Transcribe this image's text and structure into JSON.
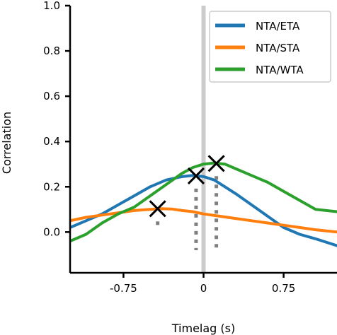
{
  "chart_data": {
    "type": "line",
    "title": "",
    "xlabel": "Timelag (s)",
    "ylabel": "Correlation",
    "xlim": [
      -1.25,
      1.25
    ],
    "ylim": [
      -0.18,
      1.0
    ],
    "xticks": [
      {
        "value": -0.75,
        "label": "-0.75"
      },
      {
        "value": 0,
        "label": "0"
      },
      {
        "value": 0.75,
        "label": "0.75"
      }
    ],
    "yticks": [
      {
        "value": 0.0,
        "label": "0.0"
      },
      {
        "value": 0.2,
        "label": "0.2"
      },
      {
        "value": 0.4,
        "label": "0.4"
      },
      {
        "value": 0.6,
        "label": "0.6"
      },
      {
        "value": 0.8,
        "label": "0.8"
      },
      {
        "value": 1.0,
        "label": "1.0"
      }
    ],
    "grid": false,
    "legend_position": "top-right",
    "zero_line": {
      "x": 0,
      "color": "#cccccc"
    },
    "series": [
      {
        "name": "NTA/ETA",
        "color": "#1f77b4",
        "x": [
          -1.25,
          -1.1,
          -0.95,
          -0.8,
          -0.65,
          -0.5,
          -0.35,
          -0.2,
          -0.1,
          0.0,
          0.1,
          0.2,
          0.3,
          0.45,
          0.6,
          0.75,
          0.9,
          1.05,
          1.25
        ],
        "y": [
          0.02,
          0.05,
          0.08,
          0.12,
          0.16,
          0.2,
          0.23,
          0.245,
          0.25,
          0.245,
          0.23,
          0.2,
          0.17,
          0.12,
          0.07,
          0.02,
          -0.01,
          -0.03,
          -0.06
        ]
      },
      {
        "name": "NTA/STA",
        "color": "#ff7f0e",
        "x": [
          -1.25,
          -1.1,
          -0.95,
          -0.8,
          -0.65,
          -0.5,
          -0.4,
          -0.3,
          -0.2,
          -0.1,
          0.0,
          0.15,
          0.3,
          0.45,
          0.6,
          0.75,
          0.9,
          1.05,
          1.25
        ],
        "y": [
          0.05,
          0.065,
          0.075,
          0.085,
          0.095,
          0.1,
          0.103,
          0.102,
          0.095,
          0.09,
          0.08,
          0.07,
          0.06,
          0.05,
          0.04,
          0.03,
          0.02,
          0.01,
          0.0
        ]
      },
      {
        "name": "NTA/WTA",
        "color": "#2ca02c",
        "x": [
          -1.25,
          -1.1,
          -0.95,
          -0.8,
          -0.65,
          -0.5,
          -0.35,
          -0.2,
          -0.1,
          0.0,
          0.1,
          0.2,
          0.3,
          0.45,
          0.6,
          0.75,
          0.9,
          1.05,
          1.25
        ],
        "y": [
          -0.04,
          -0.01,
          0.04,
          0.08,
          0.11,
          0.16,
          0.21,
          0.26,
          0.285,
          0.3,
          0.305,
          0.3,
          0.28,
          0.25,
          0.22,
          0.18,
          0.14,
          0.1,
          0.09
        ]
      }
    ],
    "peak_markers": [
      {
        "series": "NTA/STA",
        "x": -0.43,
        "y": 0.103,
        "line_bottom": 0.02,
        "color": "#000000"
      },
      {
        "series": "NTA/ETA",
        "x": -0.07,
        "y": 0.248,
        "line_bottom": -0.08,
        "color": "#000000"
      },
      {
        "series": "NTA/WTA",
        "x": 0.12,
        "y": 0.303,
        "line_bottom": -0.09,
        "color": "#000000"
      }
    ],
    "peak_line_color": "#808080"
  }
}
